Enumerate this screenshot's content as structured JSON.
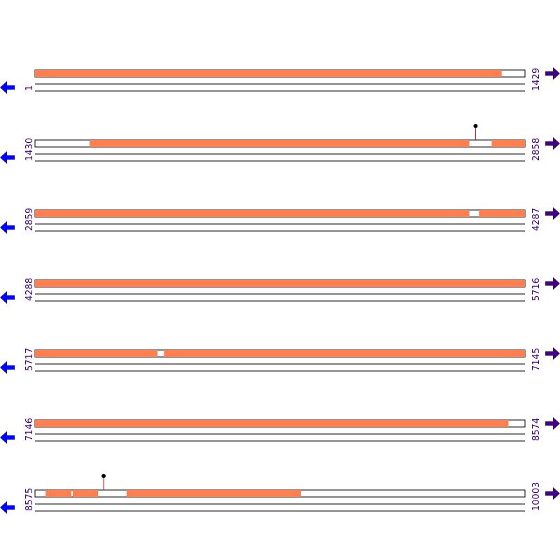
{
  "rows": [
    {
      "start": 1,
      "end": 1429,
      "features": [
        [
          1,
          1361
        ]
      ],
      "pins": []
    },
    {
      "start": 1430,
      "end": 2858,
      "features": [
        [
          1589,
          2696
        ],
        [
          2761,
          2858
        ]
      ],
      "pins": [
        2714
      ]
    },
    {
      "start": 2859,
      "end": 4287,
      "features": [
        [
          2859,
          4125
        ],
        [
          4153,
          4287
        ]
      ],
      "pins": []
    },
    {
      "start": 4288,
      "end": 5716,
      "features": [
        [
          4288,
          5716
        ]
      ],
      "pins": []
    },
    {
      "start": 5717,
      "end": 7145,
      "features": [
        [
          5717,
          6074
        ],
        [
          6093,
          7145
        ]
      ],
      "pins": []
    },
    {
      "start": 7146,
      "end": 8574,
      "features": [
        [
          7146,
          8526
        ]
      ],
      "pins": []
    },
    {
      "start": 8575,
      "end": 10003,
      "features": [
        [
          8606,
          8681
        ],
        [
          8685,
          8759
        ],
        [
          8842,
          9350
        ]
      ],
      "pins": [
        8775
      ]
    }
  ]
}
